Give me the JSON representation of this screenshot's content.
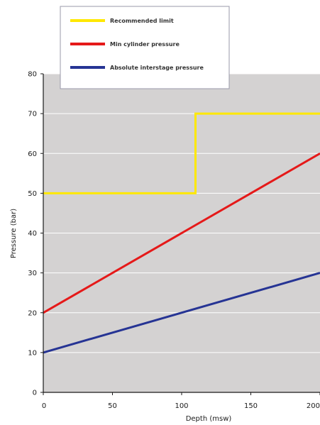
{
  "chart_data": {
    "type": "line",
    "title": "",
    "xlabel": "Depth (msw)",
    "ylabel": "Pressure (bar)",
    "xlim": [
      0,
      200
    ],
    "ylim": [
      0,
      80
    ],
    "x_ticks": [
      0,
      50,
      100,
      150,
      200
    ],
    "y_ticks": [
      0,
      10,
      20,
      30,
      40,
      50,
      60,
      70,
      80
    ],
    "grid": "horizontal",
    "legend_position": "top-left",
    "plot_background": "#d4d2d2",
    "series": [
      {
        "name": "Recommended limit",
        "color": "#ffe800",
        "points": [
          [
            0,
            50
          ],
          [
            110,
            50
          ],
          [
            110,
            70
          ],
          [
            200,
            70
          ]
        ]
      },
      {
        "name": "Min cylinder pressure",
        "color": "#e51919",
        "points": [
          [
            0,
            20
          ],
          [
            200,
            60
          ]
        ]
      },
      {
        "name": "Absolute interstage pressure",
        "color": "#263494",
        "points": [
          [
            0,
            10
          ],
          [
            200,
            30
          ]
        ]
      }
    ]
  }
}
